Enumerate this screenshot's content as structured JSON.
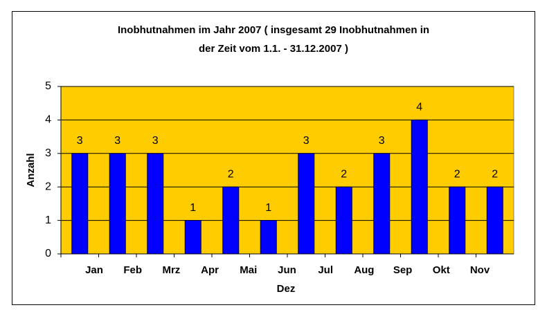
{
  "chart_data": {
    "type": "bar",
    "title": [
      "Inobhutnahmen im Jahr 2007 ( insgesamt 29 Inobhutnahmen in",
      "der Zeit vom 1.1. - 31.12.2007 )"
    ],
    "y_label": "Anzahl",
    "categories": [
      "Jan",
      "Feb",
      "Mrz",
      "Apr",
      "Mai",
      "Jun",
      "Jul",
      "Aug",
      "Sep",
      "Okt",
      "Nov",
      "Dez"
    ],
    "values": [
      3,
      3,
      3,
      1,
      2,
      1,
      3,
      2,
      3,
      4,
      2,
      2
    ],
    "color": "#0000ff",
    "plot_background": "#ffcc00",
    "ylim": [
      0,
      5
    ],
    "yticks": [
      0,
      1,
      2,
      3,
      4,
      5
    ],
    "grid": true
  }
}
